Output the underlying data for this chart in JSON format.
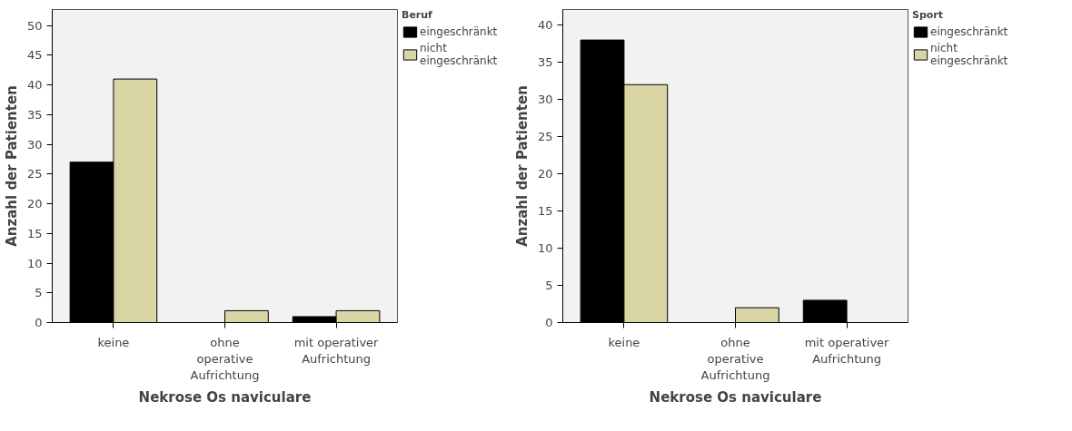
{
  "chart_data": [
    {
      "type": "bar",
      "xlabel": "Nekrose Os naviculare",
      "ylabel": "Anzahl der Patienten",
      "legend_title": "Beruf",
      "legend": "right",
      "grid": false,
      "categories": [
        "keine",
        "ohne\noperative\nAufrichtung",
        "mit operativer\nAufrichtung"
      ],
      "series": [
        {
          "name": "eingeschränkt",
          "color": "#000000",
          "values": [
            27,
            0,
            1
          ]
        },
        {
          "name": "nicht\neingeschränkt",
          "color": "#d9d5a5",
          "values": [
            41,
            2,
            2
          ]
        }
      ],
      "ylim": [
        0,
        52.7
      ],
      "yticks": [
        0,
        5,
        10,
        15,
        20,
        25,
        30,
        35,
        40,
        45,
        50
      ]
    },
    {
      "type": "bar",
      "xlabel": "Nekrose Os naviculare",
      "ylabel": "Anzahl der Patienten",
      "legend_title": "Sport",
      "legend": "right",
      "grid": false,
      "categories": [
        "keine",
        "ohne\noperative\nAufrichtung",
        "mit operativer\nAufrichtung"
      ],
      "series": [
        {
          "name": "eingeschränkt",
          "color": "#000000",
          "values": [
            38,
            0,
            3
          ]
        },
        {
          "name": "nicht\neingeschränkt",
          "color": "#d9d5a5",
          "values": [
            32,
            2,
            0
          ]
        }
      ],
      "ylim": [
        0,
        42.1
      ],
      "yticks": [
        0,
        5,
        10,
        15,
        20,
        25,
        30,
        35,
        40
      ]
    }
  ]
}
